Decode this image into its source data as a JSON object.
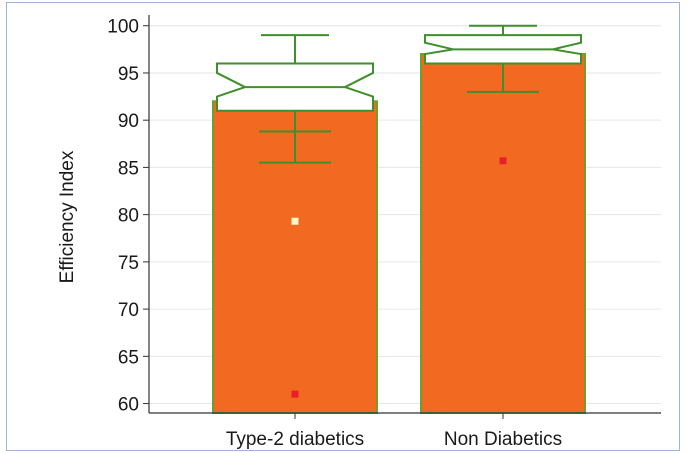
{
  "chart_data": {
    "type": "box",
    "title": "",
    "xlabel": "",
    "ylabel": "Efficiency Index",
    "ylim": [
      59,
      100.5
    ],
    "yticks": [
      60,
      65,
      70,
      75,
      80,
      85,
      90,
      95,
      100
    ],
    "grid": "horizontal",
    "categories": [
      "Type-2 diabetics",
      "Non Diabetics"
    ],
    "bar_values": [
      92,
      97
    ],
    "boxes": [
      {
        "category": "Type-2 diabetics",
        "whisker_low": 85.5,
        "q1": 91,
        "median": 93.5,
        "q3": 96,
        "whisker_high": 99,
        "notch_low": 92.5,
        "notch_high": 95,
        "error_low": 85.5,
        "error_mid": 88.8,
        "error_high": 91
      },
      {
        "category": "Non Diabetics",
        "whisker_low": 93,
        "q1": 96,
        "median": 97.5,
        "q3": 99,
        "whisker_high": 100,
        "notch_low": 97,
        "notch_high": 98.2,
        "error_low": 93,
        "error_mid": 96,
        "error_high": 96
      }
    ],
    "points": [
      {
        "category": "Type-2 diabetics",
        "y": 79.3,
        "color": "#fff6cc"
      },
      {
        "category": "Type-2 diabetics",
        "y": 61,
        "color": "#e8202a"
      },
      {
        "category": "Non Diabetics",
        "y": 85.7,
        "color": "#e8202a"
      }
    ],
    "colors": {
      "bar": "#f26a21",
      "bar_edge": "#6aa12e",
      "box": "#3f8f2a",
      "grid": "#e6e6e6",
      "axis": "#333333"
    }
  }
}
